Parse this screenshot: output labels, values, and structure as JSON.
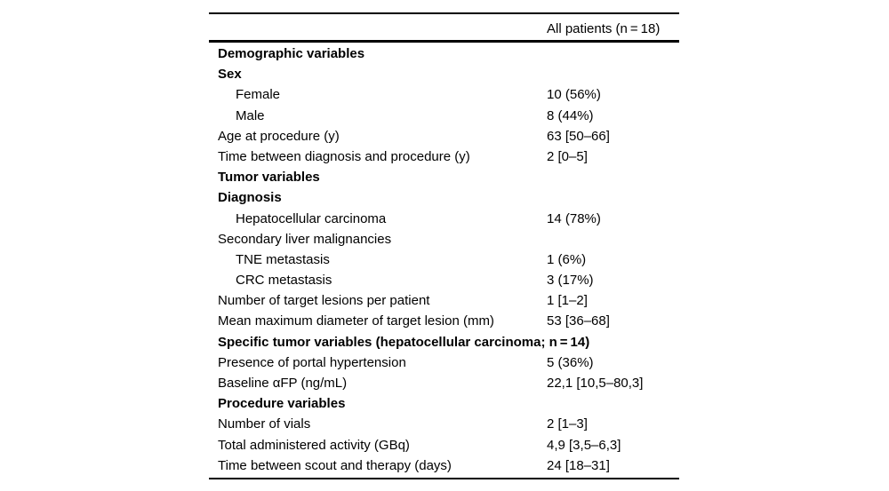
{
  "page": {
    "background_color": "#ffffff",
    "text_color": "#000000",
    "rule_color": "#000000"
  },
  "table": {
    "value_column_header": "All patients (n = 18)",
    "rows": [
      {
        "label": "Demographic variables",
        "value": "",
        "bold": true,
        "indent": false
      },
      {
        "label": "Sex",
        "value": "",
        "bold": true,
        "indent": false
      },
      {
        "label": "Female",
        "value": "10 (56%)",
        "bold": false,
        "indent": true
      },
      {
        "label": "Male",
        "value": "8 (44%)",
        "bold": false,
        "indent": true
      },
      {
        "label": "Age at procedure (y)",
        "value": "63 [50–66]",
        "bold": false,
        "indent": false
      },
      {
        "label": "Time between diagnosis and procedure (y)",
        "value": "2 [0–5]",
        "bold": false,
        "indent": false
      },
      {
        "label": "Tumor variables",
        "value": "",
        "bold": true,
        "indent": false
      },
      {
        "label": "Diagnosis",
        "value": "",
        "bold": true,
        "indent": false
      },
      {
        "label": "Hepatocellular carcinoma",
        "value": "14 (78%)",
        "bold": false,
        "indent": true
      },
      {
        "label": "Secondary liver malignancies",
        "value": "",
        "bold": false,
        "indent": false
      },
      {
        "label": "TNE metastasis",
        "value": "1 (6%)",
        "bold": false,
        "indent": true
      },
      {
        "label": "CRC metastasis",
        "value": "3 (17%)",
        "bold": false,
        "indent": true
      },
      {
        "label": "Number of target lesions per patient",
        "value": "1 [1–2]",
        "bold": false,
        "indent": false
      },
      {
        "label": "Mean maximum diameter of target lesion (mm)",
        "value": "53 [36–68]",
        "bold": false,
        "indent": false
      },
      {
        "label": "Specific tumor variables (hepatocellular carcinoma; n = 14)",
        "value": "",
        "bold": true,
        "indent": false
      },
      {
        "label": "Presence of portal hypertension",
        "value": "5 (36%)",
        "bold": false,
        "indent": false
      },
      {
        "label": "Baseline αFP (ng/mL)",
        "value": "22,1 [10,5–80,3]",
        "bold": false,
        "indent": false
      },
      {
        "label": "Procedure variables",
        "value": "",
        "bold": true,
        "indent": false
      },
      {
        "label": "Number of vials",
        "value": "2 [1–3]",
        "bold": false,
        "indent": false
      },
      {
        "label": "Total administered activity (GBq)",
        "value": "4,9 [3,5–6,3]",
        "bold": false,
        "indent": false
      },
      {
        "label": "Time between scout and therapy (days)",
        "value": "24 [18–31]",
        "bold": false,
        "indent": false
      }
    ]
  }
}
